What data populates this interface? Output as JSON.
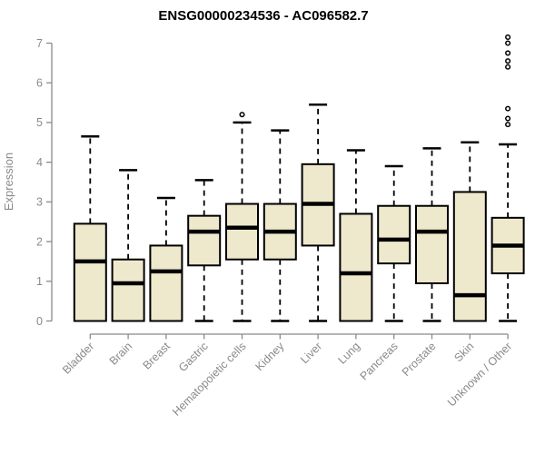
{
  "chart_data": {
    "type": "boxplot",
    "title": "ENSG00000234536 - AC096582.7",
    "ylabel": "Expression",
    "xlabel": "",
    "ylim": [
      0,
      7
    ],
    "yticks": [
      0,
      1,
      2,
      3,
      4,
      5,
      6,
      7
    ],
    "grid": false,
    "legend": "none",
    "categories": [
      "Bladder",
      "Brain",
      "Breast",
      "Gastric",
      "Hematopoietic cells",
      "Kidney",
      "Liver",
      "Lung",
      "Pancreas",
      "Prostate",
      "Skin",
      "Unknown / Other"
    ],
    "series": [
      {
        "name": "Bladder",
        "min": 0,
        "q1": 0,
        "median": 1.5,
        "q3": 2.45,
        "max": 4.65,
        "outliers": []
      },
      {
        "name": "Brain",
        "min": 0,
        "q1": 0,
        "median": 0.95,
        "q3": 1.55,
        "max": 3.8,
        "outliers": []
      },
      {
        "name": "Breast",
        "min": 0,
        "q1": 0,
        "median": 1.25,
        "q3": 1.9,
        "max": 3.1,
        "outliers": []
      },
      {
        "name": "Gastric",
        "min": 0,
        "q1": 1.4,
        "median": 2.25,
        "q3": 2.65,
        "max": 3.55,
        "outliers": []
      },
      {
        "name": "Hematopoietic cells",
        "min": 0,
        "q1": 1.55,
        "median": 2.35,
        "q3": 2.95,
        "max": 5.0,
        "outliers": [
          5.2
        ]
      },
      {
        "name": "Kidney",
        "min": 0,
        "q1": 1.55,
        "median": 2.25,
        "q3": 2.95,
        "max": 4.8,
        "outliers": []
      },
      {
        "name": "Liver",
        "min": 0,
        "q1": 1.9,
        "median": 2.95,
        "q3": 3.95,
        "max": 5.45,
        "outliers": []
      },
      {
        "name": "Lung",
        "min": 0,
        "q1": 0,
        "median": 1.2,
        "q3": 2.7,
        "max": 4.3,
        "outliers": []
      },
      {
        "name": "Pancreas",
        "min": 0,
        "q1": 1.45,
        "median": 2.05,
        "q3": 2.9,
        "max": 3.9,
        "outliers": []
      },
      {
        "name": "Prostate",
        "min": 0,
        "q1": 0.95,
        "median": 2.25,
        "q3": 2.9,
        "max": 4.35,
        "outliers": []
      },
      {
        "name": "Skin",
        "min": 0,
        "q1": 0,
        "median": 0.65,
        "q3": 3.25,
        "max": 4.5,
        "outliers": []
      },
      {
        "name": "Unknown / Other",
        "min": 0,
        "q1": 1.2,
        "median": 1.9,
        "q3": 2.6,
        "max": 4.45,
        "outliers": [
          7.15,
          7.0,
          6.75,
          6.55,
          6.4,
          5.35,
          5.1,
          4.95
        ]
      }
    ],
    "colors": {
      "box_fill": "#EEE8CD",
      "box_stroke": "#000000",
      "median": "#000000",
      "whisker": "#000000",
      "outlier": "#000000",
      "axis": "#8A8A8A",
      "title": "#000000",
      "background": "#FFFFFF"
    }
  }
}
